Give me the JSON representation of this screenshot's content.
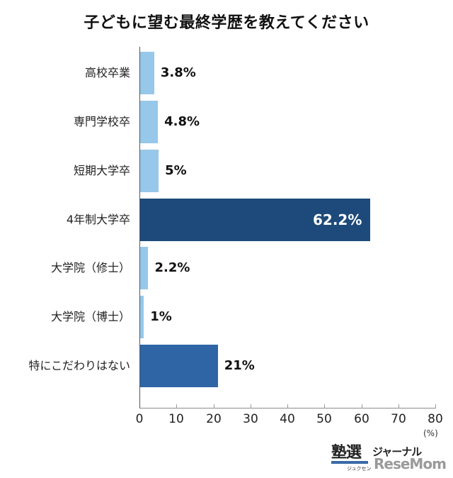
{
  "title": "子どもに望む最終学歴を教えてください",
  "chart_data": {
    "type": "bar",
    "orientation": "horizontal",
    "title": "子どもに望む最終学歴を教えてください",
    "categories": [
      "高校卒業",
      "専門学校卒",
      "短期大学卒",
      "4年制大学卒",
      "大学院（修士）",
      "大学院（博士）",
      "特にこだわりはない"
    ],
    "values": [
      3.8,
      4.8,
      5,
      62.2,
      2.2,
      1,
      21
    ],
    "value_labels": [
      "3.8%",
      "4.8%",
      "5%",
      "62.2%",
      "2.2%",
      "1%",
      "21%"
    ],
    "colors": [
      "#97c7e9",
      "#97c7e9",
      "#97c7e9",
      "#1d4a7a",
      "#97c7e9",
      "#97c7e9",
      "#2f65a5"
    ],
    "xlabel": "(%)",
    "ylabel": "",
    "xlim": [
      0,
      80
    ],
    "xticks": [
      0,
      10,
      20,
      30,
      40,
      50,
      60,
      70,
      80
    ],
    "grid": false,
    "legend": null
  },
  "axis": {
    "ticks": [
      "0",
      "10",
      "20",
      "30",
      "40",
      "50",
      "60",
      "70",
      "80"
    ],
    "unit": "(%)"
  },
  "logo": {
    "main": "塾選",
    "sub": "ジュクセン",
    "journal": "ジャーナル",
    "watermark": "ReseMom"
  }
}
